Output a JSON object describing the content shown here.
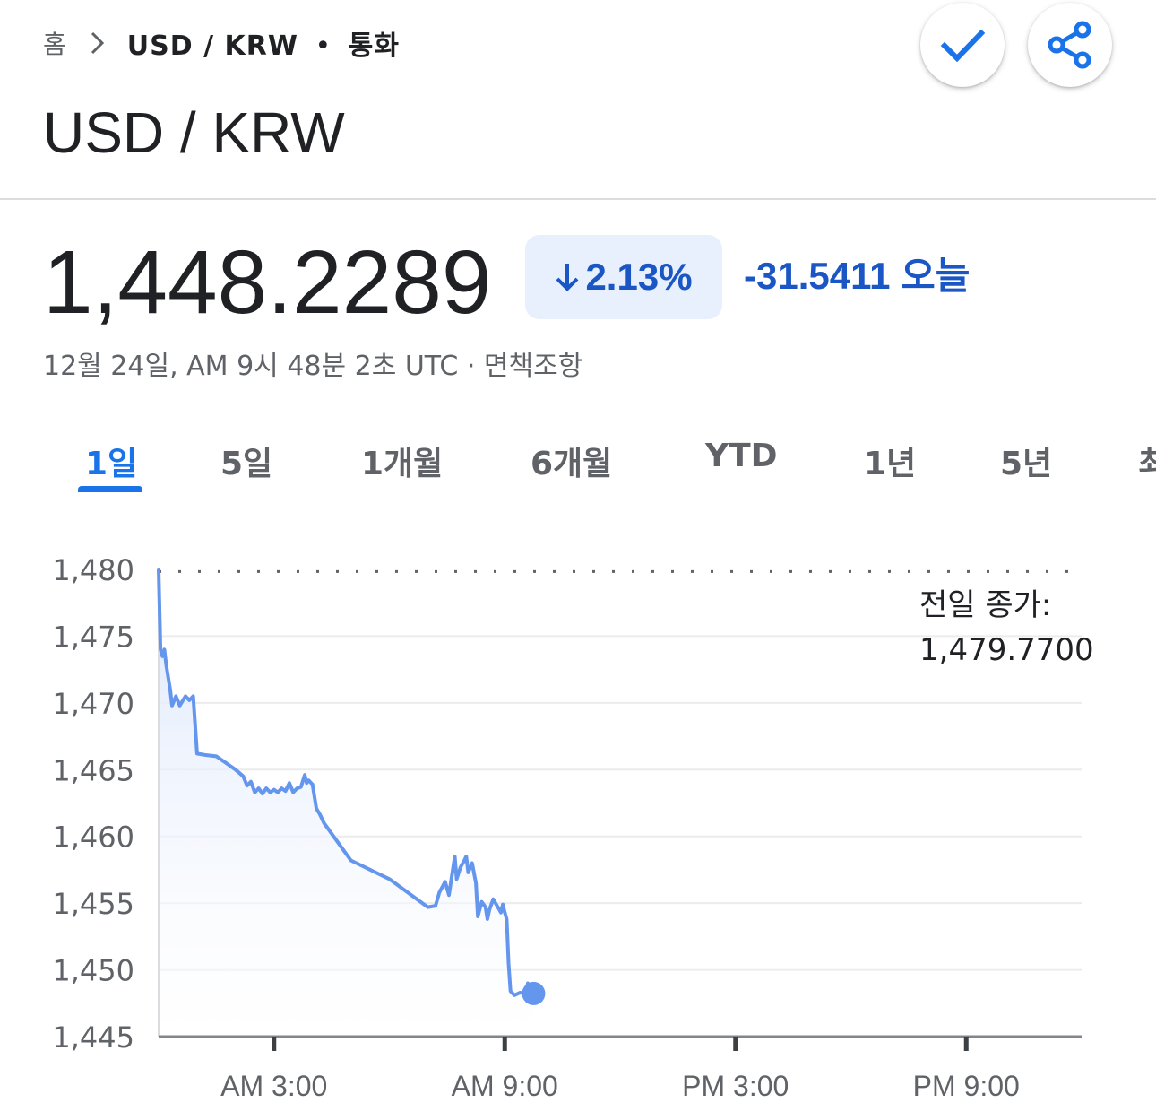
{
  "breadcrumb": {
    "home": "홈",
    "current_symbol": "USD / KRW",
    "separator": "•",
    "category": "통화"
  },
  "actions": {
    "follow_icon": "check-icon",
    "share_icon": "share-icon"
  },
  "title": "USD / KRW",
  "quote": {
    "price": "1,448.2289",
    "change_percent": "2.13%",
    "change_direction": "down",
    "change_absolute": "-31.5411 오늘",
    "timestamp": "12월 24일, AM 9시 48분 2초 UTC · 면책조항"
  },
  "tabs": [
    "1일",
    "5일",
    "1개월",
    "6개월",
    "YTD",
    "1년",
    "5년",
    "최"
  ],
  "active_tab": 0,
  "previous_close": {
    "label": "전일 종가:",
    "value": "1,479.7700"
  },
  "colors": {
    "accent": "#1a73e8",
    "down_text": "#1a56c4",
    "line": "#6496ee",
    "badge_bg": "#e8f0fe"
  },
  "chart_data": {
    "type": "area",
    "ylim": [
      1445,
      1480
    ],
    "xlim": [
      0,
      24
    ],
    "y_ticks": [
      1480,
      1475,
      1470,
      1465,
      1460,
      1455,
      1450,
      1445
    ],
    "y_tick_labels": [
      "1,480",
      "1,475",
      "1,470",
      "1,465",
      "1,460",
      "1,455",
      "1,450",
      "1,445"
    ],
    "x_ticks": [
      3,
      9,
      15,
      21
    ],
    "x_tick_labels": [
      "AM 3:00",
      "AM 9:00",
      "PM 3:00",
      "PM 9:00"
    ],
    "reference_line": 1479.77,
    "grid": true,
    "series": [
      {
        "x": [
          0,
          0.05,
          0.1,
          0.15,
          0.2,
          0.3,
          0.35,
          0.45,
          0.55,
          0.7,
          0.8,
          0.9,
          1.0,
          1.2,
          1.5,
          2.0,
          2.2,
          2.3,
          2.4,
          2.5,
          2.6,
          2.7,
          2.8,
          2.9,
          3.0,
          3.1,
          3.2,
          3.3,
          3.4,
          3.5,
          3.6,
          3.7,
          3.8,
          3.85,
          3.9,
          4.0,
          4.1,
          4.2,
          4.3,
          5.0,
          6.0,
          7.0,
          7.2,
          7.3,
          7.45,
          7.55,
          7.7,
          7.75,
          7.85,
          7.95,
          8.0,
          8.05,
          8.15,
          8.25,
          8.3,
          8.4,
          8.5,
          8.55,
          8.6,
          8.7,
          8.8,
          8.9,
          8.95,
          9.0,
          9.05,
          9.1,
          9.15,
          9.25,
          9.4,
          9.55,
          9.6,
          9.7,
          9.75
        ],
        "values": [
          1480.5,
          1474.0,
          1473.5,
          1474.0,
          1472.8,
          1471.0,
          1469.8,
          1470.5,
          1469.8,
          1470.5,
          1470.2,
          1470.5,
          1466.2,
          1466.1,
          1466.0,
          1465.0,
          1464.5,
          1463.8,
          1464.1,
          1463.3,
          1463.6,
          1463.2,
          1463.6,
          1463.3,
          1463.5,
          1463.3,
          1463.6,
          1463.4,
          1464.0,
          1463.3,
          1463.6,
          1463.7,
          1464.6,
          1464.0,
          1464.2,
          1463.9,
          1462.1,
          1461.6,
          1461.0,
          1458.2,
          1456.8,
          1454.7,
          1454.8,
          1455.8,
          1456.6,
          1455.6,
          1458.5,
          1456.8,
          1457.7,
          1458.2,
          1458.5,
          1457.3,
          1458.0,
          1456.5,
          1454.0,
          1455.1,
          1454.7,
          1453.8,
          1454.5,
          1455.3,
          1454.8,
          1454.3,
          1454.9,
          1454.3,
          1453.8,
          1450.5,
          1448.4,
          1448.1,
          1448.3,
          1448.2,
          1449.0,
          1448.4,
          1448.2289
        ]
      }
    ]
  }
}
